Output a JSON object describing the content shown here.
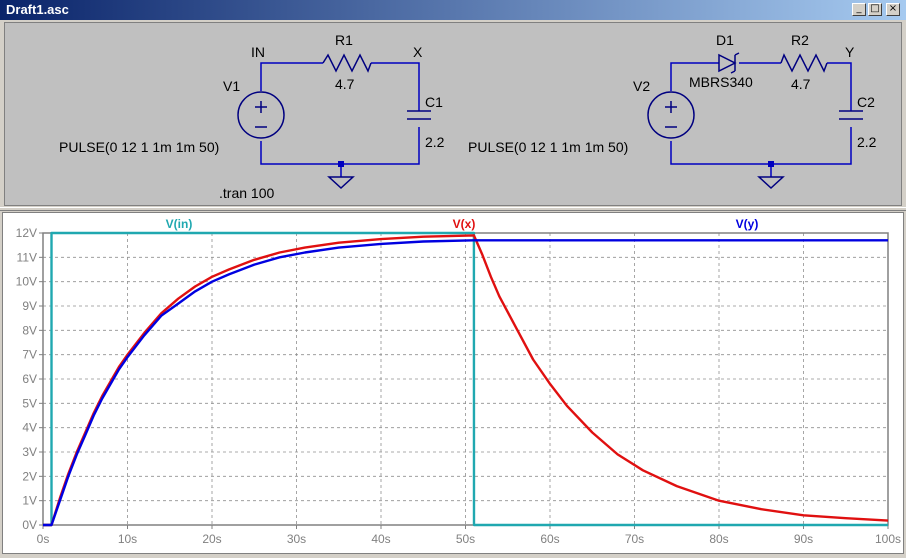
{
  "window": {
    "title": "Draft1.asc",
    "buttons": {
      "minimize": "_",
      "maximize": "□",
      "close": "×"
    }
  },
  "schematic": {
    "labels": {
      "node_in": "IN",
      "r1": "R1",
      "r1_value": "4.7",
      "node_x": "X",
      "v1": "V1",
      "c1": "C1",
      "c1_value": "2.2",
      "v1_pulse": "PULSE(0 12 1 1m 1m 50)",
      "tran": ".tran 100",
      "d1": "D1",
      "d1_model": "MBRS340",
      "r2": "R2",
      "r2_value": "4.7",
      "node_y": "Y",
      "v2": "V2",
      "c2": "C2",
      "c2_value": "2.2",
      "v2_pulse": "PULSE(0 12 1 1m 1m 50)"
    },
    "colors": {
      "wire": "#0000c0",
      "component": "#000080",
      "text": "#000000"
    }
  },
  "chart_data": {
    "type": "line",
    "x_ticks": [
      "0s",
      "10s",
      "20s",
      "30s",
      "40s",
      "50s",
      "60s",
      "70s",
      "80s",
      "90s",
      "100s"
    ],
    "y_ticks": [
      "0V",
      "1V",
      "2V",
      "3V",
      "4V",
      "5V",
      "6V",
      "7V",
      "8V",
      "9V",
      "10V",
      "11V",
      "12V"
    ],
    "xlim": [
      0,
      100
    ],
    "ylim": [
      0,
      12
    ],
    "grid": true,
    "series": [
      {
        "name": "V(in)",
        "color": "#20a8b0",
        "x": [
          0,
          0.8,
          1,
          1.001,
          51,
          51.001,
          100
        ],
        "y": [
          0,
          0,
          0,
          12,
          12,
          0,
          0
        ]
      },
      {
        "name": "V(x)",
        "color": "#e01010",
        "x": [
          0,
          1,
          2,
          3,
          4,
          5,
          6,
          7,
          8,
          9,
          10,
          12,
          14,
          16,
          18,
          20,
          22,
          25,
          28,
          31,
          35,
          40,
          45,
          51,
          52,
          53,
          54,
          56,
          58,
          60,
          62,
          65,
          68,
          71,
          75,
          80,
          85,
          90,
          95,
          100
        ],
        "y": [
          0,
          0,
          1.1,
          2.1,
          3.0,
          3.8,
          4.6,
          5.3,
          5.9,
          6.5,
          7.0,
          7.9,
          8.7,
          9.3,
          9.8,
          10.2,
          10.5,
          10.9,
          11.2,
          11.4,
          11.6,
          11.75,
          11.85,
          11.9,
          11.1,
          10.2,
          9.4,
          8.1,
          6.8,
          5.8,
          4.9,
          3.8,
          2.9,
          2.25,
          1.6,
          1.0,
          0.65,
          0.4,
          0.28,
          0.18
        ]
      },
      {
        "name": "V(y)",
        "color": "#0000e0",
        "x": [
          0,
          1,
          2,
          3,
          4,
          5,
          6,
          7,
          8,
          9,
          10,
          12,
          14,
          16,
          18,
          20,
          22,
          25,
          28,
          31,
          35,
          40,
          45,
          51,
          60,
          70,
          80,
          90,
          100
        ],
        "y": [
          0,
          0,
          1.0,
          2.0,
          2.9,
          3.7,
          4.5,
          5.2,
          5.8,
          6.4,
          6.9,
          7.8,
          8.6,
          9.1,
          9.6,
          10.0,
          10.3,
          10.7,
          11.0,
          11.2,
          11.4,
          11.55,
          11.65,
          11.7,
          11.7,
          11.7,
          11.7,
          11.7,
          11.7
        ]
      }
    ]
  }
}
